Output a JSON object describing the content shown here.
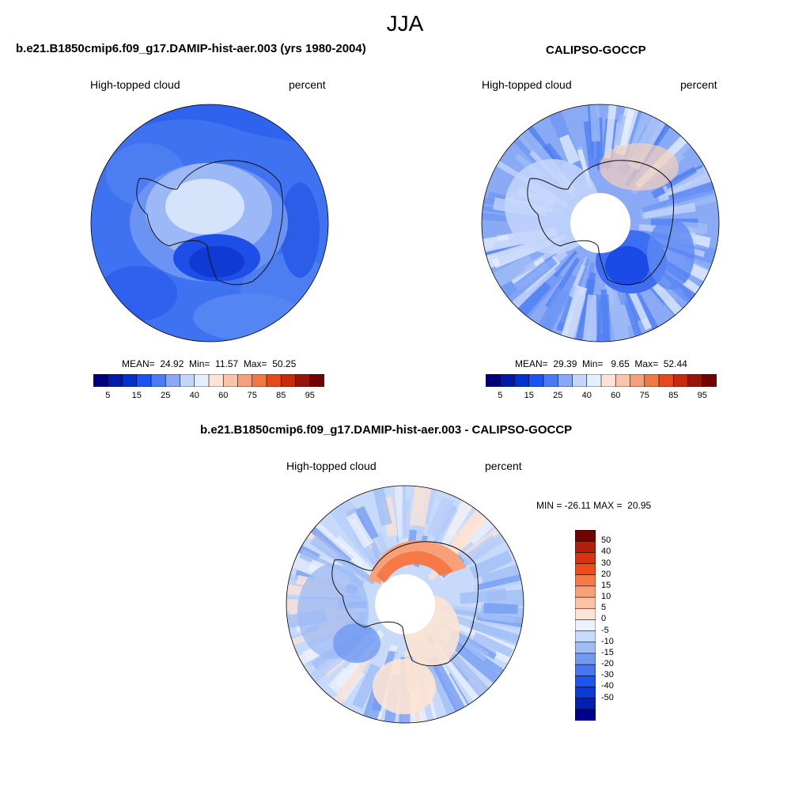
{
  "page": {
    "season": "JJA"
  },
  "panels": {
    "model": {
      "title": "b.e21.B1850cmip6.f09_g17.DAMIP-hist-aer.003 (yrs 1980-2004)",
      "variable": "High-topped cloud",
      "units": "percent",
      "stats": "MEAN=  24.92  Min=  11.57  Max=  50.25"
    },
    "obs": {
      "title": "CALIPSO-GOCCP",
      "variable": "High-topped cloud",
      "units": "percent",
      "stats": "MEAN=  29.39  Min=   9.65  Max=  52.44"
    },
    "diff": {
      "title": "b.e21.B1850cmip6.f09_g17.DAMIP-hist-aer.003 - CALIPSO-GOCCP",
      "variable": "High-topped cloud",
      "units": "percent",
      "stats": "MIN = -26.11 MAX =  20.95"
    }
  },
  "colorbars": {
    "abs": {
      "colors": [
        "#00007f",
        "#0019a6",
        "#0033cc",
        "#1a55f2",
        "#4a7af5",
        "#88a9f7",
        "#c3d6fa",
        "#e4eefc",
        "#fde4d6",
        "#fbc4a9",
        "#f7a07b",
        "#f07845",
        "#e54a1a",
        "#c62a0c",
        "#96150a",
        "#700303"
      ],
      "tick_labels": [
        "5",
        "15",
        "25",
        "40",
        "60",
        "75",
        "85",
        "95"
      ]
    },
    "diff": {
      "colors": [
        "#700303",
        "#b02008",
        "#d83210",
        "#f04c18",
        "#f57a48",
        "#f8a078",
        "#fbc3a6",
        "#fde3d3",
        "#ecf2fc",
        "#c8daf9",
        "#9fbcf5",
        "#7199f2",
        "#4575f0",
        "#1f55ec",
        "#0a3ad6",
        "#0020b2",
        "#000088"
      ],
      "tick_labels": [
        "50",
        "40",
        "30",
        "20",
        "15",
        "10",
        "5",
        "0",
        "-5",
        "-10",
        "-15",
        "-20",
        "-30",
        "-40",
        "-50"
      ]
    }
  },
  "chart_data": [
    {
      "type": "heatmap",
      "title": "b.e21.B1850cmip6.f09_g17.DAMIP-hist-aer.003 (yrs 1980-2004)",
      "variable": "High-topped cloud",
      "units": "percent",
      "mean": 24.92,
      "min": 11.57,
      "max": 50.25,
      "contour_levels": [
        5,
        10,
        15,
        20,
        25,
        30,
        40,
        50,
        60,
        70,
        75,
        80,
        85,
        90,
        95
      ]
    },
    {
      "type": "heatmap",
      "title": "CALIPSO-GOCCP",
      "variable": "High-topped cloud",
      "units": "percent",
      "mean": 29.39,
      "min": 9.65,
      "max": 52.44,
      "contour_levels": [
        5,
        10,
        15,
        20,
        25,
        30,
        40,
        50,
        60,
        70,
        75,
        80,
        85,
        90,
        95
      ]
    },
    {
      "type": "heatmap",
      "title": "b.e21.B1850cmip6.f09_g17.DAMIP-hist-aer.003 - CALIPSO-GOCCP",
      "variable": "High-topped cloud",
      "units": "percent",
      "min": -26.11,
      "max": 20.95,
      "contour_levels": [
        -50,
        -40,
        -30,
        -20,
        -15,
        -10,
        -5,
        0,
        5,
        10,
        15,
        20,
        30,
        40,
        50
      ]
    }
  ]
}
